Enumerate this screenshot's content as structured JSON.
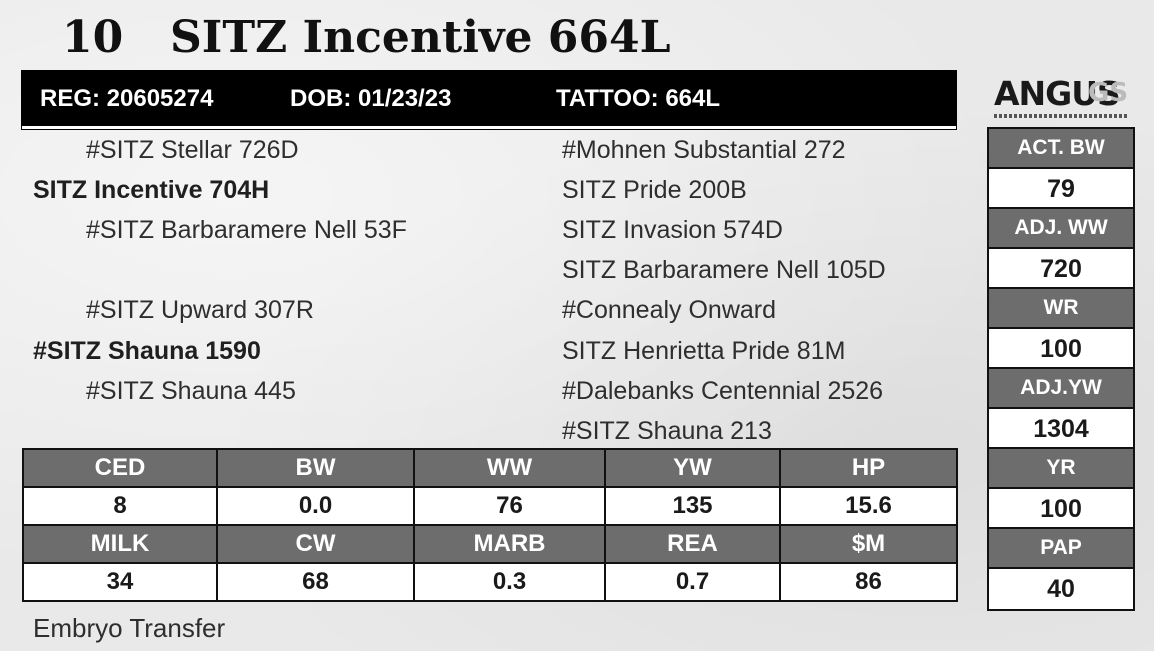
{
  "header": {
    "lot_number": "10",
    "animal_name": "SITZ Incentive 664L"
  },
  "reg_bar": {
    "reg": "REG: 20605274",
    "dob": "DOB: 01/23/23",
    "tattoo": "TATTOO: 664L"
  },
  "logo": {
    "word": "ANGUS",
    "suffix": "GS"
  },
  "pedigree": {
    "sire_sire": "#SITZ Stellar 726D",
    "sire": "SITZ Incentive 704H",
    "sire_dam": "#SITZ Barbaramere Nell 53F",
    "dam_sire": "#SITZ Upward 307R",
    "dam": "#SITZ Shauna 1590",
    "dam_dam": "#SITZ Shauna 445",
    "right": [
      "#Mohnen Substantial 272",
      "SITZ Pride 200B",
      "SITZ Invasion 574D",
      "SITZ Barbaramere Nell 105D",
      "#Connealy Onward",
      "SITZ Henrietta Pride 81M",
      "#Dalebanks Centennial 2526",
      "#SITZ Shauna 213"
    ]
  },
  "epd": {
    "row1_headers": [
      "CED",
      "BW",
      "WW",
      "YW",
      "HP"
    ],
    "row1_values": [
      "8",
      "0.0",
      "76",
      "135",
      "15.6"
    ],
    "row2_headers": [
      "MILK",
      "CW",
      "MARB",
      "REA",
      "$M"
    ],
    "row2_values": [
      "34",
      "68",
      "0.3",
      "0.7",
      "86"
    ]
  },
  "performance": [
    {
      "label": "ACT. BW",
      "value": "79"
    },
    {
      "label": "ADJ. WW",
      "value": "720"
    },
    {
      "label": "WR",
      "value": "100"
    },
    {
      "label": "ADJ.YW",
      "value": "1304"
    },
    {
      "label": "YR",
      "value": "100"
    },
    {
      "label": "PAP",
      "value": "40"
    }
  ],
  "footer_note": "Embryo Transfer"
}
